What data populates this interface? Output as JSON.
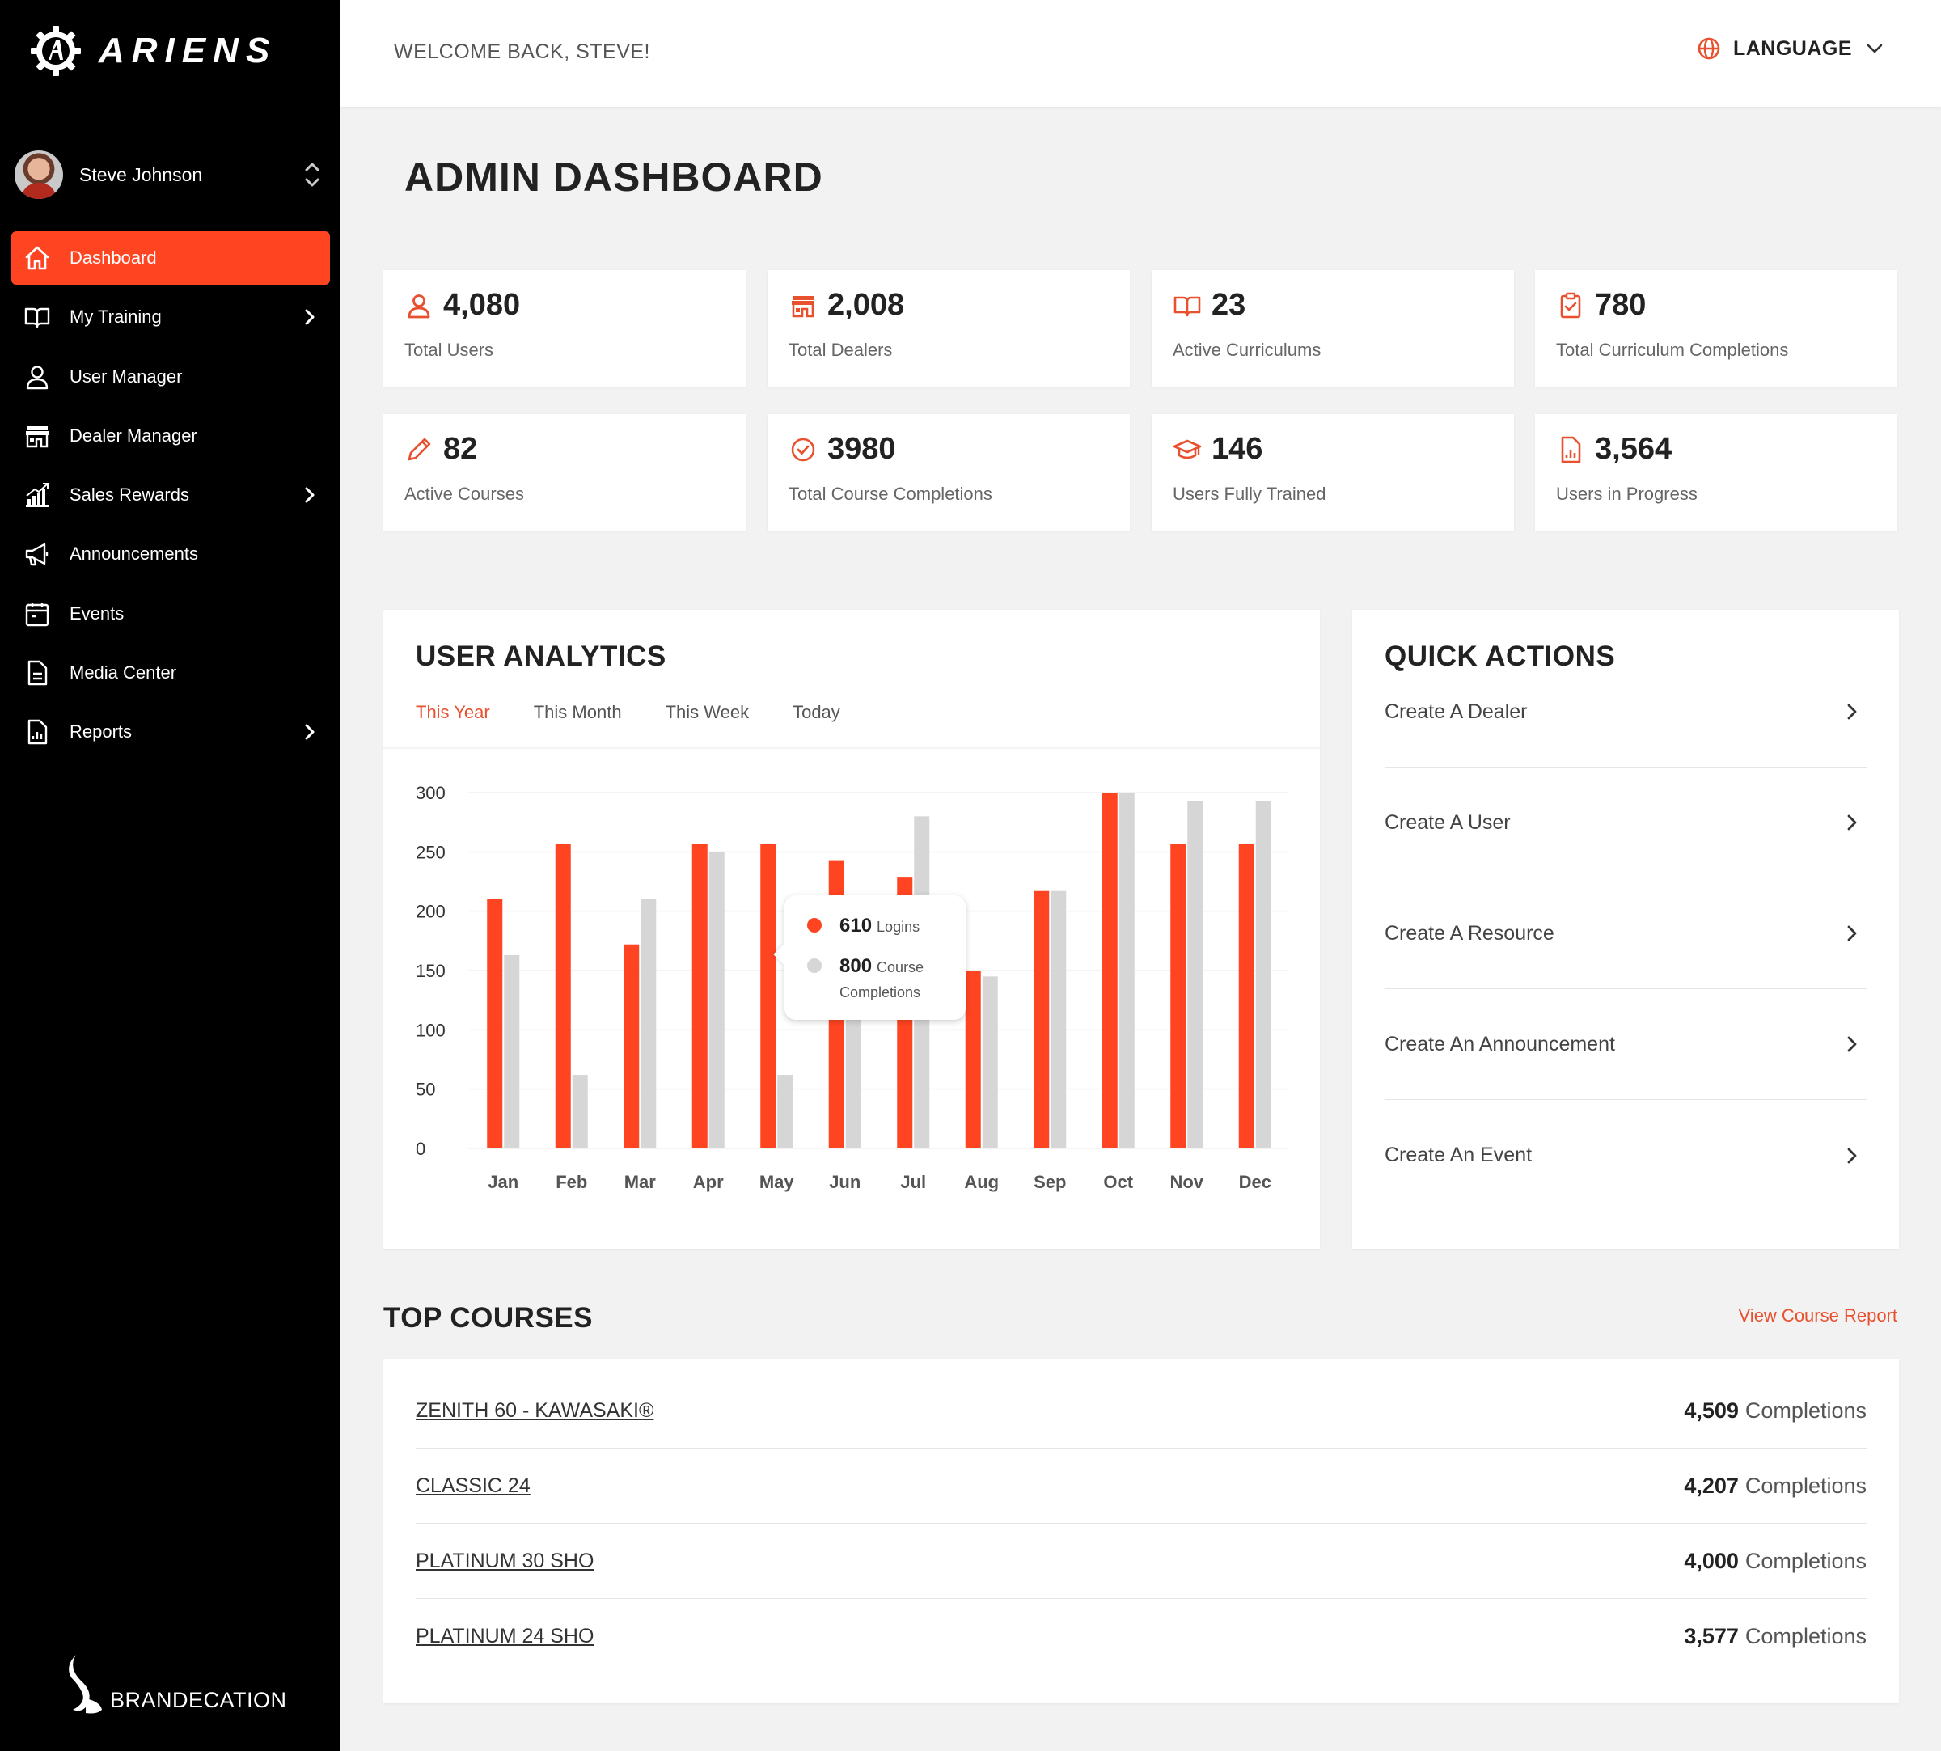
{
  "brand": {
    "name": "ARIENS",
    "footer": "BRANDECATION"
  },
  "user": {
    "name": "Steve Johnson"
  },
  "sidebar": {
    "items": [
      {
        "label": "Dashboard"
      },
      {
        "label": "My Training"
      },
      {
        "label": "User Manager"
      },
      {
        "label": "Dealer Manager"
      },
      {
        "label": "Sales Rewards"
      },
      {
        "label": "Announcements"
      },
      {
        "label": "Events"
      },
      {
        "label": "Media Center"
      },
      {
        "label": "Reports"
      }
    ]
  },
  "header": {
    "welcome": "WELCOME BACK, STEVE!",
    "language": "LANGUAGE"
  },
  "page": {
    "title": "ADMIN DASHBOARD"
  },
  "stats": [
    {
      "value": "4,080",
      "label": "Total Users",
      "icon": "user-icon"
    },
    {
      "value": "2,008",
      "label": "Total Dealers",
      "icon": "store-icon"
    },
    {
      "value": "23",
      "label": "Active Curriculums",
      "icon": "book-icon"
    },
    {
      "value": "780",
      "label": "Total Curriculum Completions",
      "icon": "clipboard-check-icon"
    },
    {
      "value": "82",
      "label": "Active Courses",
      "icon": "pencil-icon"
    },
    {
      "value": "3980",
      "label": "Total Course Completions",
      "icon": "check-circle-icon"
    },
    {
      "value": "146",
      "label": "Users Fully Trained",
      "icon": "graduation-cap-icon"
    },
    {
      "value": "3,564",
      "label": "Users in Progress",
      "icon": "report-icon"
    }
  ],
  "analytics": {
    "title": "USER ANALYTICS",
    "tabs": [
      "This Year",
      "This Month",
      "This Week",
      "Today"
    ],
    "tooltip": {
      "logins_value": "610",
      "logins_label": "Logins",
      "completions_value": "800",
      "completions_label": "Course Completions"
    }
  },
  "colors": {
    "accent": "#ff4422",
    "secondary_bar": "#d6d6d6",
    "sidebar_bg": "#000000"
  },
  "chart_data": {
    "type": "bar",
    "categories": [
      "Jan",
      "Feb",
      "Mar",
      "Apr",
      "May",
      "Jun",
      "Jul",
      "Aug",
      "Sep",
      "Oct",
      "Nov",
      "Dec"
    ],
    "series": [
      {
        "name": "Logins",
        "color": "#ff4422",
        "values": [
          210,
          257,
          172,
          257,
          257,
          243,
          229,
          150,
          217,
          300,
          257,
          257
        ]
      },
      {
        "name": "Course Completions",
        "color": "#d6d6d6",
        "values": [
          163,
          62,
          210,
          250,
          62,
          120,
          280,
          145,
          217,
          300,
          293,
          293
        ]
      }
    ],
    "yticks": [
      0,
      50,
      100,
      150,
      200,
      250,
      300
    ],
    "ylim": [
      0,
      300
    ],
    "grid": true
  },
  "quick_actions": {
    "title": "QUICK ACTIONS",
    "items": [
      {
        "label": "Create A Dealer"
      },
      {
        "label": "Create A User"
      },
      {
        "label": "Create A Resource"
      },
      {
        "label": "Create An Announcement"
      },
      {
        "label": "Create An Event"
      }
    ]
  },
  "top_courses": {
    "title": "TOP COURSES",
    "link": "View Course Report",
    "suffix": "Completions",
    "items": [
      {
        "name": "ZENITH 60 - KAWASAKI®",
        "count": "4,509"
      },
      {
        "name": "CLASSIC 24",
        "count": "4,207"
      },
      {
        "name": "PLATINUM 30 SHO",
        "count": "4,000"
      },
      {
        "name": "PLATINUM 24 SHO",
        "count": "3,577"
      }
    ]
  }
}
